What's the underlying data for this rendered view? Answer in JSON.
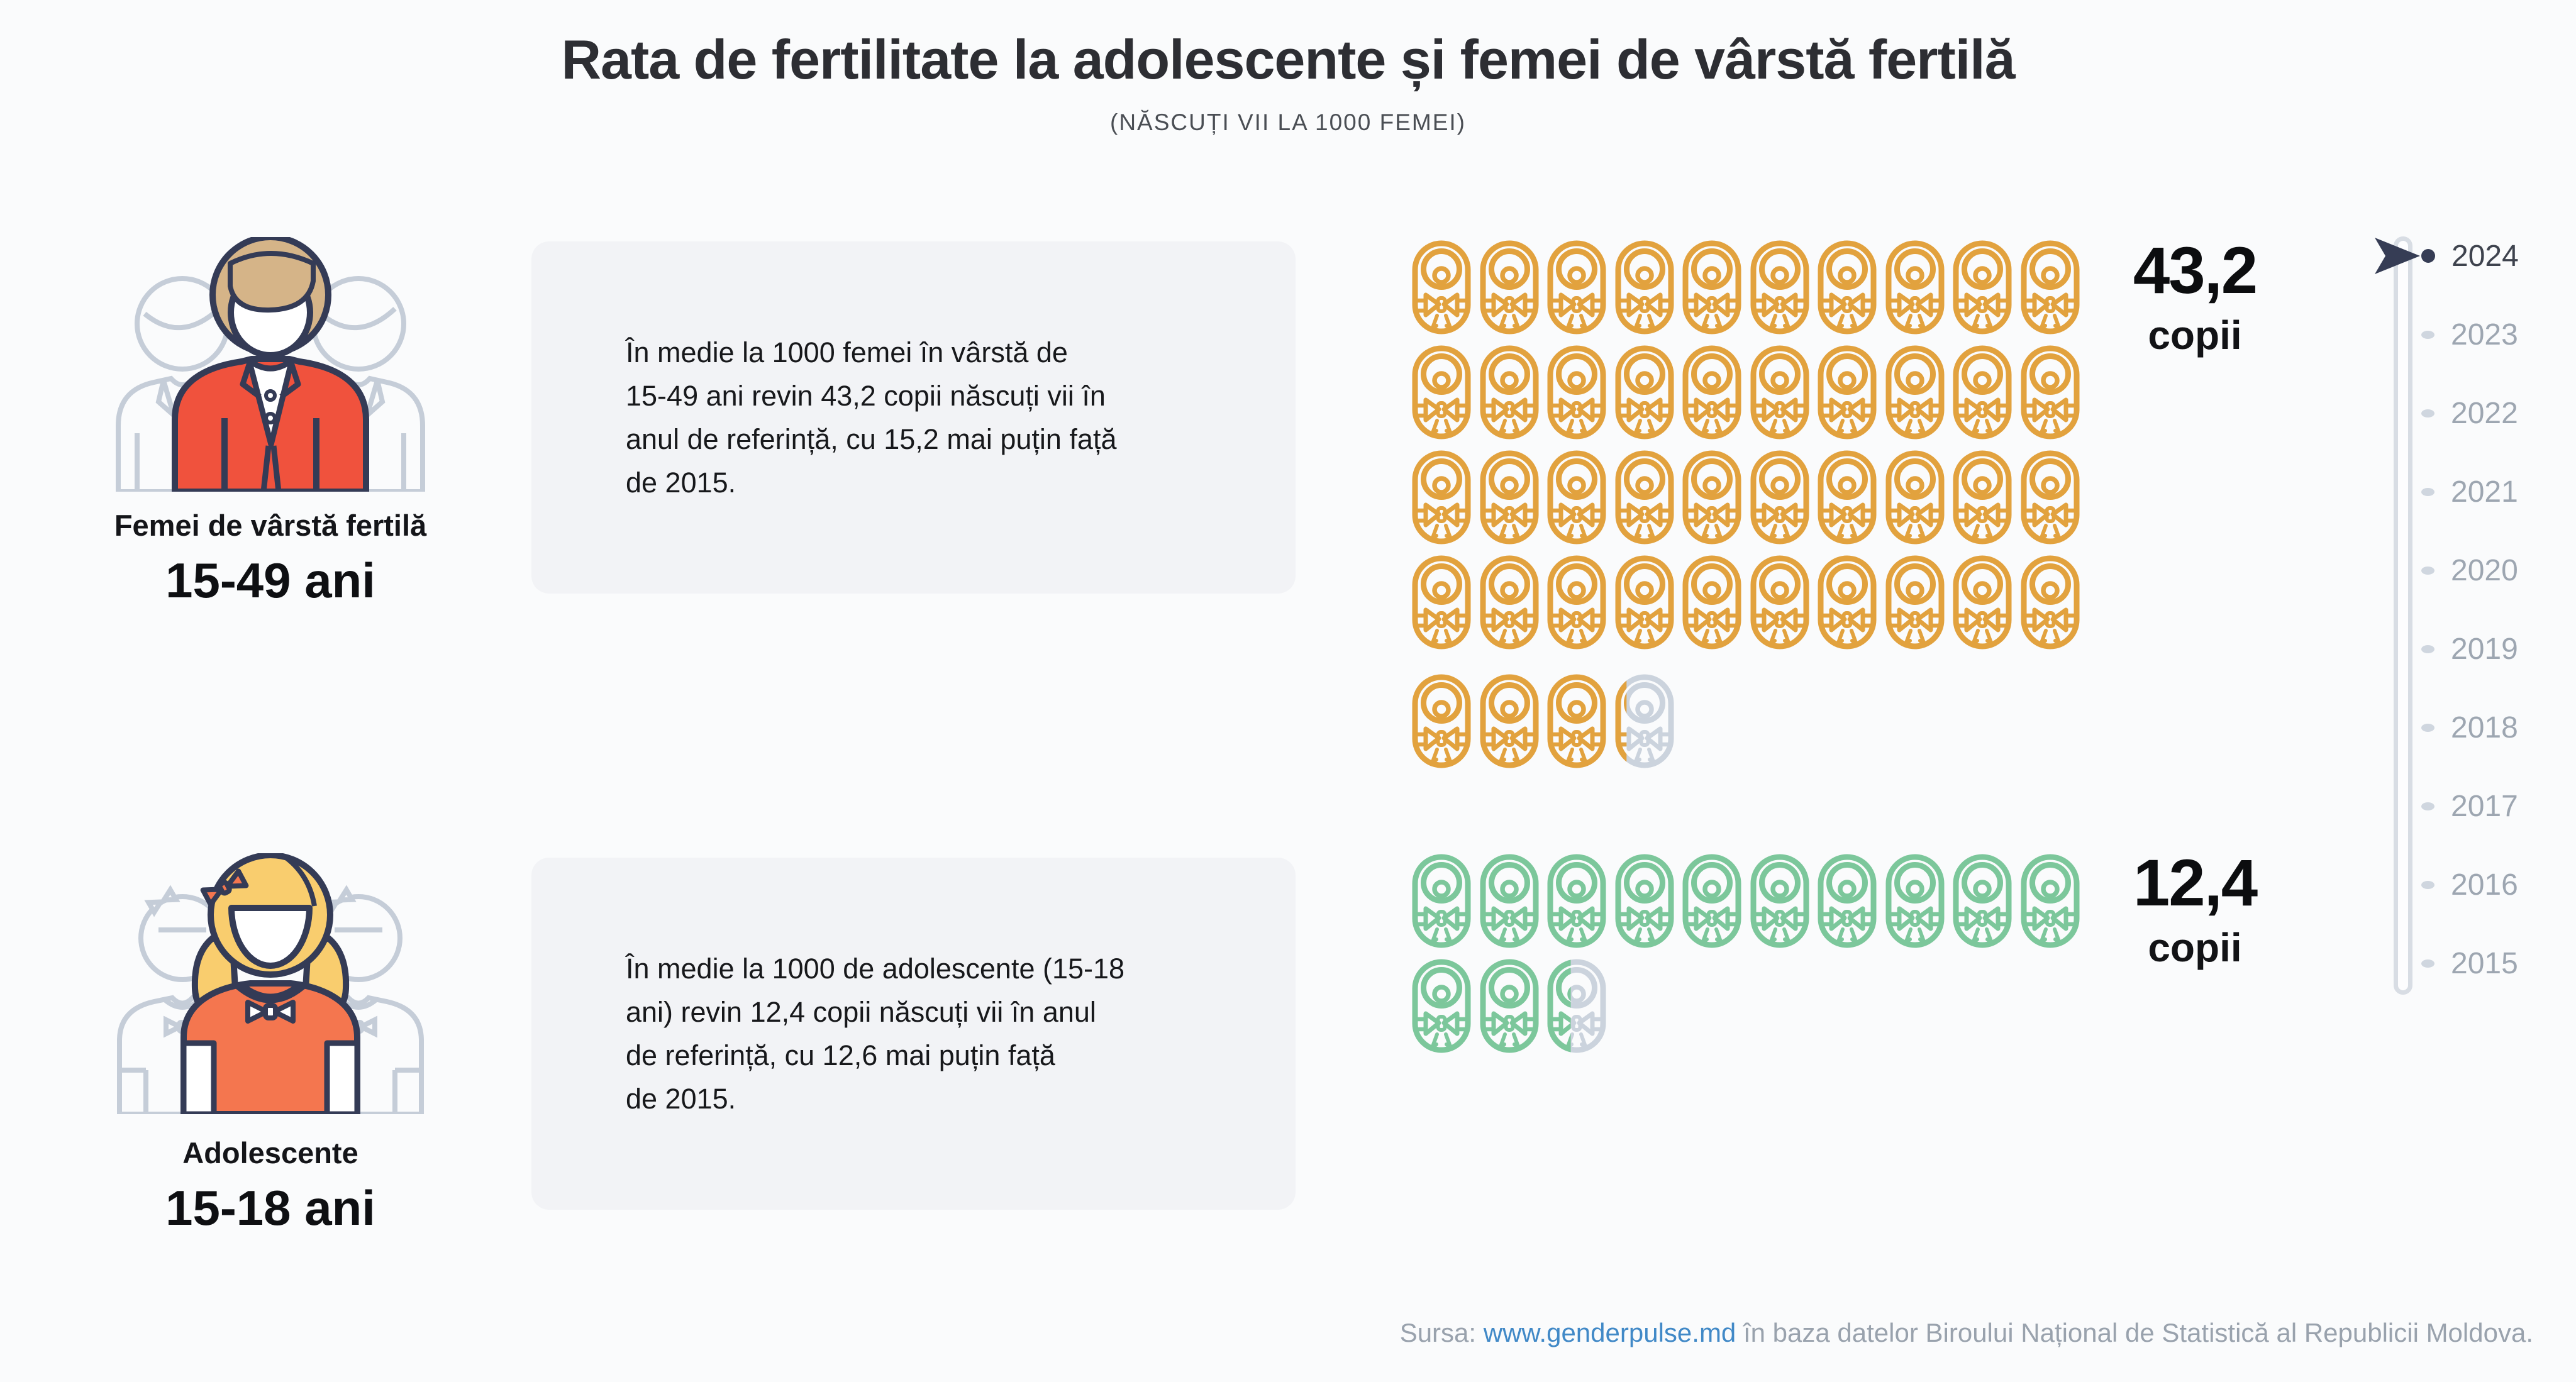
{
  "header": {
    "title": "Rata de fertilitate la adolescente și femei de vârstă fertilă",
    "subtitle": "(NĂSCUȚI VII LA 1000 FEMEI)"
  },
  "groups": [
    {
      "label": "Femei de vârstă fertilă",
      "age": "15-49 ani",
      "description_lines": [
        "În medie la 1000 femei în vârstă de",
        "15-49 ani revin 43,2 copii născuți vii în",
        "anul de referință, cu 15,2 mai puțin față",
        "de 2015."
      ],
      "value_label": "43,2",
      "unit_label": "copii"
    },
    {
      "label": "Adolescente",
      "age": "15-18 ani",
      "description_lines": [
        "În medie la 1000 de adolescente (15-18",
        "ani) revin 12,4 copii născuți vii în anul",
        "de referință, cu 12,6 mai puțin față",
        "de 2015."
      ],
      "value_label": "12,4",
      "unit_label": "copii"
    }
  ],
  "chart_data": {
    "type": "pictogram",
    "title": "Rata de fertilitate la adolescente și femei de vârstă fertilă",
    "subtitle": "(NĂSCUȚI VII LA 1000 FEMEI)",
    "unit": "copii născuți vii la 1000 femei",
    "icon": "swaddled-baby-icon",
    "series": [
      {
        "name": "Femei de vârstă fertilă (15-49 ani)",
        "value": 43.2,
        "full_icons": 43,
        "partial_fraction": 0.2,
        "icons_per_row": 10,
        "row_offsets": [
          0,
          0,
          0,
          0,
          22
        ],
        "color": "#e2a23e",
        "change_vs_2015": -15.2
      },
      {
        "name": "Adolescente (15-18 ani)",
        "value": 12.4,
        "full_icons": 12,
        "partial_fraction": 0.4,
        "icons_per_row": 10,
        "row_offsets": [
          0,
          0
        ],
        "color": "#7cc79b",
        "change_vs_2015": -12.6
      }
    ],
    "reference_year": 2024,
    "comparison_year": 2015
  },
  "timeline": {
    "years": [
      "2024",
      "2023",
      "2022",
      "2021",
      "2020",
      "2019",
      "2018",
      "2017",
      "2016",
      "2015"
    ],
    "selected": "2024"
  },
  "footer": {
    "prefix": "Sursa:",
    "link": "www.genderpulse.md",
    "suffix": "în baza datelor Biroului Național de Statistică al Republicii Moldova."
  },
  "icons": {
    "baby": "swaddled-baby-icon",
    "cursor": "timeline-cursor-arrow-icon",
    "woman": "woman-red-blazer-illustration",
    "girl": "girl-pigtails-illustration"
  },
  "colors": {
    "background": "#fafbfc",
    "box_background": "#f2f3f6",
    "accent_orange": "#e2a23e",
    "accent_green": "#7cc79b",
    "icon_remainder": "#cbd3dd",
    "navy_outline": "#343b56",
    "red_jacket": "#f0523d",
    "orange_shirt": "#f4764f",
    "hair_tan": "#d5b488",
    "hair_blonde": "#f9cd6e",
    "ghost_outline": "#c5cdd8",
    "link_blue": "#4189c7",
    "text_gray": "#99a2ad",
    "timeline_active": "#363d55",
    "timeline_inactive": "#cfd6df"
  }
}
